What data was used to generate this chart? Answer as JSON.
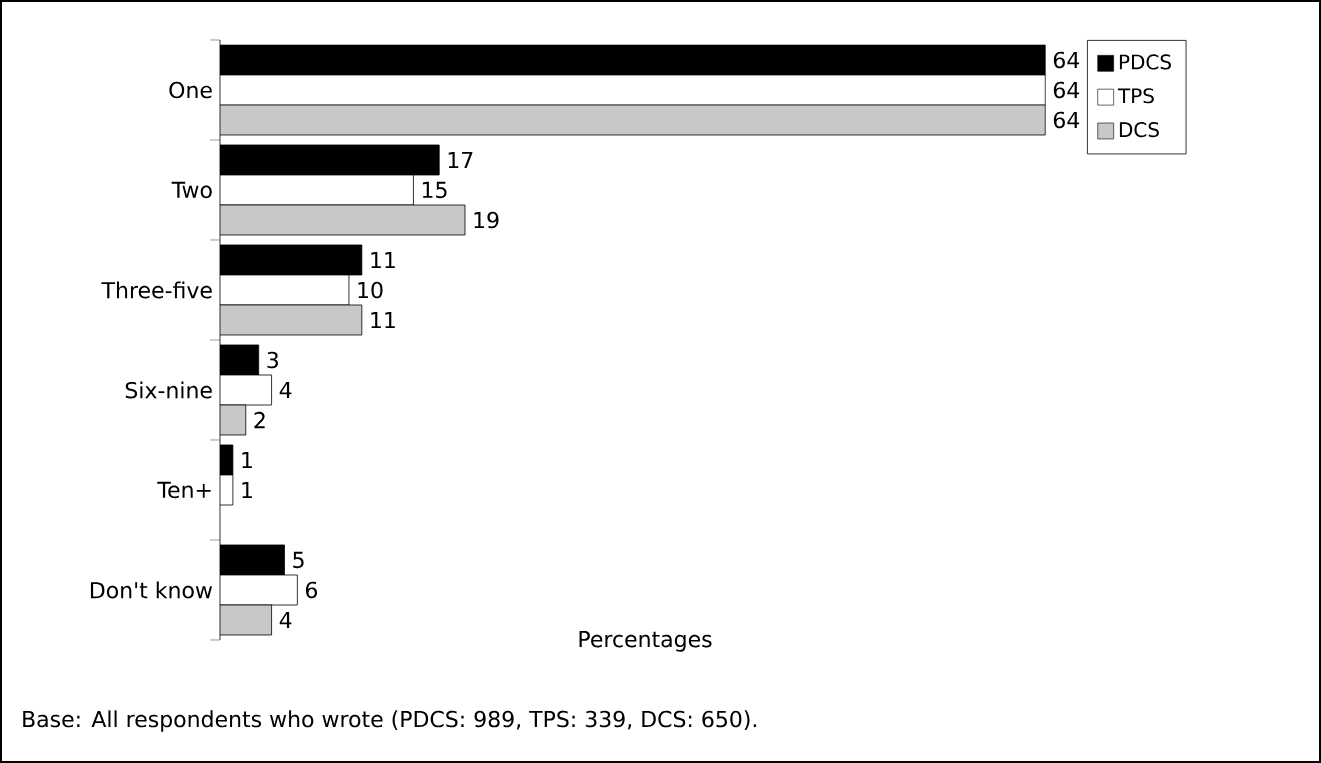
{
  "chart_data": {
    "type": "bar",
    "orientation": "horizontal",
    "xlabel": "Percentages",
    "categories": [
      "One",
      "Two",
      "Three-five",
      "Six-nine",
      "Ten+",
      "Don't know"
    ],
    "series": [
      {
        "name": "PDCS",
        "color": "#000000",
        "values": [
          64,
          17,
          11,
          3,
          1,
          5
        ]
      },
      {
        "name": "TPS",
        "color": "#ffffff",
        "values": [
          64,
          15,
          10,
          4,
          1,
          6
        ]
      },
      {
        "name": "DCS",
        "color": "#c8c8c8",
        "values": [
          64,
          19,
          11,
          2,
          null,
          4
        ]
      }
    ],
    "data_labels": true,
    "legend": "top right",
    "annotations": [
      "Base: All respondents who wrote (PDCS: 989, TPS: 339, DCS: 650)."
    ]
  }
}
